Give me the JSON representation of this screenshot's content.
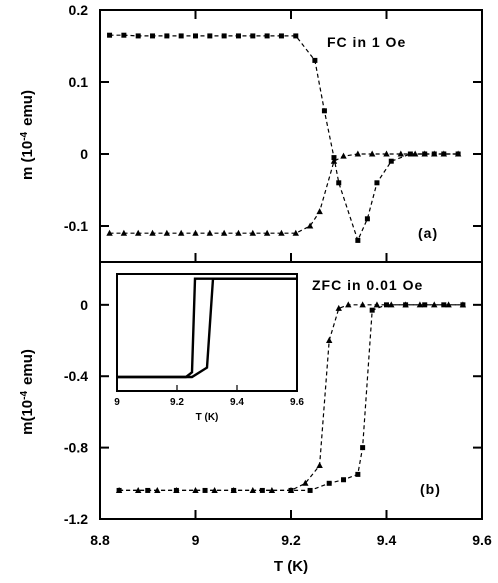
{
  "chart_data": [
    {
      "panel": "a",
      "type": "line",
      "annotation": "FC in 1 Oe",
      "panel_label": "(a)",
      "ylabel": "m (10⁻⁴ emu)",
      "ylabel_main": "m (10",
      "ylabel_exp": "-4",
      "ylabel_unit": "emu)",
      "xlim": [
        8.8,
        9.6
      ],
      "ylim": [
        -0.15,
        0.2
      ],
      "yticks": [
        0.2,
        0.1,
        0,
        -0.1
      ],
      "ytick_labels": [
        "0.2",
        "0.1",
        "0",
        "-0.1"
      ],
      "series": [
        {
          "marker": "square",
          "x": [
            8.82,
            8.85,
            8.88,
            8.91,
            8.94,
            8.97,
            9.0,
            9.03,
            9.06,
            9.09,
            9.12,
            9.15,
            9.18,
            9.21,
            9.25,
            9.27,
            9.29,
            9.3,
            9.34,
            9.36,
            9.38,
            9.41,
            9.45,
            9.48,
            9.5,
            9.52,
            9.55
          ],
          "y": [
            0.165,
            0.165,
            0.164,
            0.164,
            0.164,
            0.164,
            0.164,
            0.164,
            0.164,
            0.164,
            0.164,
            0.164,
            0.164,
            0.164,
            0.13,
            0.06,
            -0.005,
            -0.04,
            -0.12,
            -0.09,
            -0.04,
            -0.01,
            0.0,
            0.0,
            0.0,
            0.0,
            0.0
          ]
        },
        {
          "marker": "triangle",
          "x": [
            8.82,
            8.85,
            8.88,
            8.91,
            8.94,
            8.97,
            9.0,
            9.03,
            9.06,
            9.09,
            9.12,
            9.15,
            9.18,
            9.21,
            9.24,
            9.26,
            9.29,
            9.31,
            9.34,
            9.37,
            9.4,
            9.43,
            9.46,
            9.48,
            9.5,
            9.52,
            9.55
          ],
          "y": [
            -0.11,
            -0.11,
            -0.11,
            -0.11,
            -0.11,
            -0.11,
            -0.11,
            -0.11,
            -0.11,
            -0.11,
            -0.11,
            -0.11,
            -0.11,
            -0.11,
            -0.1,
            -0.08,
            -0.01,
            -0.003,
            0.0,
            0.0,
            0.0,
            0.0,
            0.0,
            0.0,
            0.0,
            0.0,
            0.0
          ]
        }
      ]
    },
    {
      "panel": "b",
      "type": "line",
      "annotation": "ZFC in 0.01 Oe",
      "panel_label": "(b)",
      "xlabel": "T  (K)",
      "ylabel": "m(10⁻⁴ emu)",
      "ylabel_main": "m(10",
      "ylabel_exp": "-4",
      "ylabel_unit": "emu)",
      "xlim": [
        8.8,
        9.6
      ],
      "ylim": [
        -1.2,
        0.24
      ],
      "xticks": [
        8.8,
        9.0,
        9.2,
        9.4,
        9.6
      ],
      "xtick_labels": [
        "8.8",
        "9",
        "9.2",
        "9.4",
        "9.6"
      ],
      "yticks": [
        0,
        -0.4,
        -0.8,
        -1.2
      ],
      "ytick_labels": [
        "0",
        "-0.4",
        "-0.8",
        "-1.2"
      ],
      "series": [
        {
          "marker": "triangle",
          "x": [
            8.84,
            8.88,
            8.92,
            8.96,
            9.0,
            9.04,
            9.08,
            9.12,
            9.16,
            9.2,
            9.23,
            9.26,
            9.28,
            9.3,
            9.32,
            9.35,
            9.38,
            9.41,
            9.44,
            9.47,
            9.5,
            9.53,
            9.56
          ],
          "y": [
            -1.04,
            -1.04,
            -1.04,
            -1.04,
            -1.04,
            -1.04,
            -1.04,
            -1.04,
            -1.04,
            -1.04,
            -1.0,
            -0.9,
            -0.2,
            -0.02,
            0.0,
            0.0,
            0.0,
            0.0,
            0.0,
            0.0,
            0.0,
            0.0,
            0.0
          ]
        },
        {
          "marker": "square",
          "x": [
            8.84,
            8.9,
            8.96,
            9.02,
            9.08,
            9.14,
            9.2,
            9.24,
            9.28,
            9.31,
            9.34,
            9.35,
            9.37,
            9.4,
            9.44,
            9.48,
            9.52,
            9.56
          ],
          "y": [
            -1.04,
            -1.04,
            -1.04,
            -1.04,
            -1.04,
            -1.04,
            -1.04,
            -1.04,
            -1.0,
            -0.98,
            -0.95,
            -0.8,
            -0.03,
            0.0,
            0.0,
            0.0,
            0.0,
            0.0
          ]
        }
      ],
      "inset": {
        "xlabel": "T  (K)",
        "xlim": [
          9.0,
          9.6
        ],
        "ylim": [
          0,
          1
        ],
        "xticks": [
          9.0,
          9.2,
          9.4,
          9.6
        ],
        "xtick_labels": [
          "9",
          "9.2",
          "9.4",
          "9.6"
        ],
        "series": [
          {
            "x": [
              9.0,
              9.23,
              9.25,
              9.26,
              9.6
            ],
            "y": [
              0.12,
              0.12,
              0.16,
              0.96,
              0.96
            ]
          },
          {
            "x": [
              9.0,
              9.25,
              9.3,
              9.32,
              9.6
            ],
            "y": [
              0.12,
              0.12,
              0.2,
              0.96,
              0.96
            ]
          }
        ]
      }
    }
  ]
}
